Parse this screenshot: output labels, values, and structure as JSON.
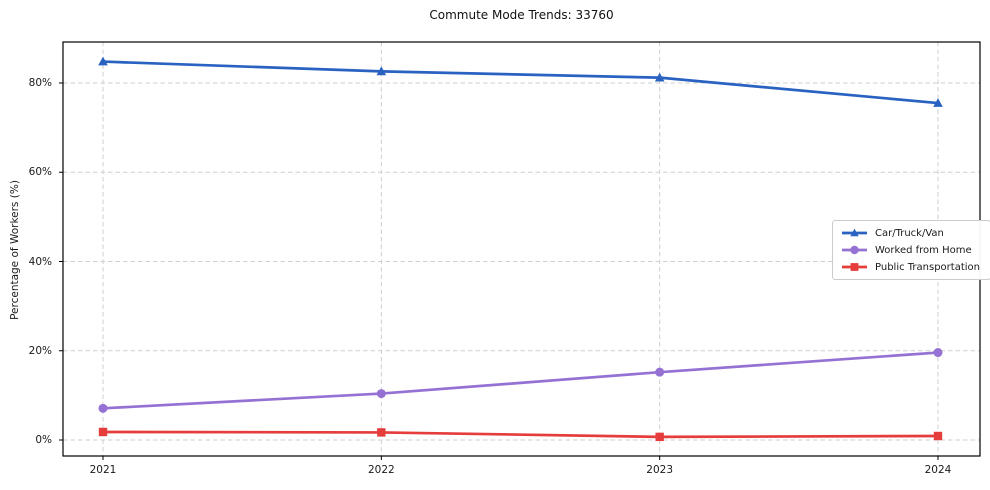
{
  "title": "Commute Mode Trends: 33760",
  "chart_data": {
    "type": "line",
    "title": "Commute Mode Trends: 33760",
    "xlabel": "",
    "ylabel": "Percentage of Workers (%)",
    "x": [
      "2021",
      "2022",
      "2023",
      "2024"
    ],
    "series": [
      {
        "name": "Car/Truck/Van",
        "marker": "triangle",
        "color": "#2a62c2",
        "values": [
          84.8,
          82.6,
          81.2,
          75.5
        ]
      },
      {
        "name": "Worked from Home",
        "marker": "circle",
        "color": "#9671d4",
        "values": [
          7.1,
          10.4,
          15.2,
          19.6
        ]
      },
      {
        "name": "Public Transportation",
        "marker": "square",
        "color": "#e53c3c",
        "values": [
          1.8,
          1.7,
          0.7,
          0.9
        ]
      }
    ],
    "ytick_values": [
      0,
      20,
      40,
      60,
      80
    ],
    "ytick_labels": [
      "0%",
      "20%",
      "40%",
      "60%",
      "80%"
    ],
    "ylim": [
      -4,
      89
    ],
    "grid": true,
    "legend_position": "center right"
  },
  "colors": {
    "background": "#ffffff",
    "grid": "#cfcfcf",
    "spine": "#000000",
    "text": "#1a1a1a",
    "legend_border": "#cccccc"
  }
}
